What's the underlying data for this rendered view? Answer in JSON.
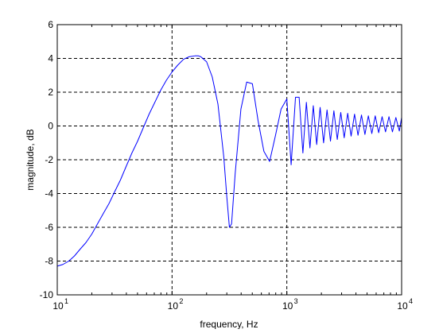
{
  "chart_data": {
    "type": "line",
    "title": "",
    "xlabel": "frequency, Hz",
    "ylabel": "magnitude, dB",
    "xscale": "log",
    "xlim": [
      10,
      10000
    ],
    "ylim": [
      -10,
      6
    ],
    "grid": true,
    "grid_style": "dashed",
    "line_color": "#0000ff",
    "x_ticks": [
      {
        "value": 10,
        "base": "10",
        "exp": "1"
      },
      {
        "value": 100,
        "base": "10",
        "exp": "2"
      },
      {
        "value": 1000,
        "base": "10",
        "exp": "3"
      },
      {
        "value": 10000,
        "base": "10",
        "exp": "4"
      }
    ],
    "y_ticks": [
      {
        "value": 6,
        "label": "6"
      },
      {
        "value": 4,
        "label": "4"
      },
      {
        "value": 2,
        "label": "2"
      },
      {
        "value": 0,
        "label": "0"
      },
      {
        "value": -2,
        "label": "-2"
      },
      {
        "value": -4,
        "label": "-4"
      },
      {
        "value": -6,
        "label": "-6"
      },
      {
        "value": -8,
        "label": "-8"
      },
      {
        "value": -10,
        "label": "-10"
      }
    ],
    "series": [
      {
        "x": [
          10,
          11.2,
          12.6,
          14.1,
          15.8,
          17.8,
          20,
          22.4,
          25.1,
          28.2,
          31.6,
          35.5,
          39.8,
          44.7,
          50.1,
          56.2,
          63.1,
          70.8,
          79.4,
          89.1,
          100,
          112,
          126,
          141,
          158,
          170,
          178,
          200,
          224,
          251,
          282,
          300,
          316,
          330,
          355,
          398,
          447,
          501,
          562,
          631,
          708,
          794,
          891,
          1000,
          1090,
          1190,
          1280,
          1380,
          1480,
          1590,
          1700,
          1820,
          1950,
          2090,
          2240,
          2400,
          2570,
          2750,
          2950,
          3160,
          3390,
          3630,
          3890,
          4170,
          4470,
          4790,
          5130,
          5500,
          5890,
          6310,
          6760,
          7240,
          7760,
          8320,
          8910,
          9550,
          10000
        ],
        "y": [
          -8.3,
          -8.2,
          -8.0,
          -7.7,
          -7.3,
          -6.9,
          -6.4,
          -5.8,
          -5.2,
          -4.6,
          -3.9,
          -3.2,
          -2.4,
          -1.6,
          -0.9,
          -0.1,
          0.7,
          1.4,
          2.1,
          2.7,
          3.2,
          3.6,
          3.95,
          4.1,
          4.15,
          4.15,
          4.1,
          3.8,
          2.9,
          1.3,
          -1.8,
          -4.2,
          -6.0,
          -5.8,
          -2.8,
          1.0,
          2.6,
          2.5,
          0.3,
          -1.5,
          -2.1,
          -0.6,
          1.0,
          1.6,
          -2.3,
          1.7,
          1.7,
          -1.6,
          1.4,
          -1.3,
          1.2,
          -1.1,
          1.1,
          -1.0,
          0.95,
          -0.9,
          0.9,
          -0.8,
          0.8,
          -0.7,
          0.75,
          -0.6,
          0.7,
          -0.55,
          0.65,
          -0.5,
          0.6,
          -0.45,
          0.6,
          -0.4,
          0.55,
          -0.35,
          0.55,
          -0.35,
          0.5,
          -0.3,
          0.5
        ]
      }
    ]
  }
}
